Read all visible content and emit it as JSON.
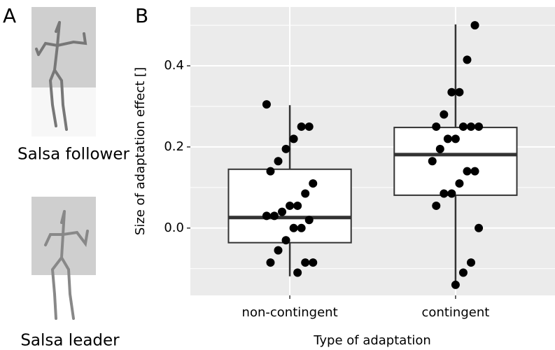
{
  "panel_a": {
    "label": "A",
    "figures": [
      "Salsa follower",
      "Salsa leader"
    ]
  },
  "chart_data": {
    "type": "box",
    "panel_label": "B",
    "x_label": "Type of adaptation",
    "y_label": "Size of adaptation effect []",
    "categories": [
      "non-contingent",
      "contingent"
    ],
    "boxes": [
      {
        "whisker_low": -0.119,
        "q1": -0.036,
        "median": 0.026,
        "q3": 0.145,
        "whisker_high": 0.303
      },
      {
        "whisker_low": -0.147,
        "q1": 0.081,
        "median": 0.181,
        "q3": 0.248,
        "whisker_high": 0.502
      }
    ],
    "points": [
      [
        0.305,
        0.25,
        0.25,
        0.22,
        0.195,
        0.165,
        0.14,
        0.11,
        0.085,
        0.055,
        0.055,
        0.04,
        0.03,
        0.03,
        0.02,
        0.0,
        0.0,
        -0.03,
        -0.055,
        -0.085,
        -0.085,
        -0.085,
        -0.11
      ],
      [
        0.5,
        0.415,
        0.335,
        0.335,
        0.28,
        0.25,
        0.25,
        0.25,
        0.25,
        0.22,
        0.22,
        0.195,
        0.165,
        0.14,
        0.14,
        0.11,
        0.085,
        0.085,
        0.055,
        0.0,
        -0.085,
        -0.11,
        -0.14
      ]
    ],
    "ylim": [
      -0.166,
      0.545
    ],
    "yticks": [
      {
        "value": 0,
        "label": "0.0"
      },
      0.2,
      0.4
    ],
    "yminorticks": [
      -0.1,
      0.1,
      0.3,
      0.5
    ],
    "grid": true,
    "panel_color": "#ebebeb",
    "point_color": "#000000"
  }
}
